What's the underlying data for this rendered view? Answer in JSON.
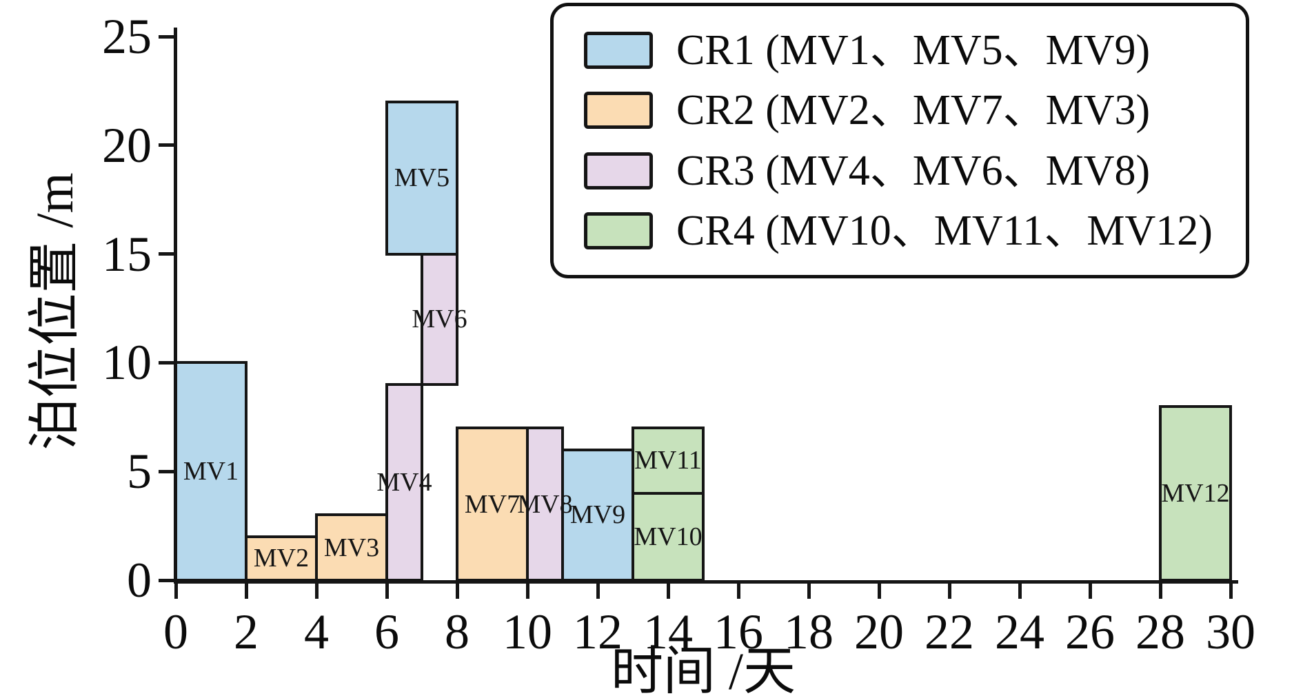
{
  "chart_data": {
    "type": "bar",
    "variant": "gantt-rectangles (berth allocation: time span vs berth position span)",
    "title": "",
    "xlabel": "时间 /天",
    "ylabel": "泊位位置 /m",
    "xlim": [
      0,
      30
    ],
    "ylim": [
      0,
      25
    ],
    "xticks": [
      0,
      2,
      4,
      6,
      8,
      10,
      12,
      14,
      16,
      18,
      20,
      22,
      24,
      26,
      28,
      30
    ],
    "yticks": [
      0,
      5,
      10,
      15,
      20,
      25
    ],
    "grid": false,
    "legend_position": "top-right",
    "edge_color": "#151515",
    "series": [
      {
        "name": "CR1",
        "label": "CR1 (MV1、MV5、MV9)",
        "color": "#b6d8ec",
        "rects": [
          {
            "label": "MV1",
            "x0": 0,
            "x1": 2,
            "y0": 0,
            "y1": 10
          },
          {
            "label": "MV5",
            "x0": 6,
            "x1": 8,
            "y0": 15,
            "y1": 22
          },
          {
            "label": "MV9",
            "x0": 11,
            "x1": 13,
            "y0": 0,
            "y1": 6
          }
        ]
      },
      {
        "name": "CR2",
        "label": "CR2 (MV2、MV7、MV3)",
        "color": "#fbdcb3",
        "rects": [
          {
            "label": "MV2",
            "x0": 2,
            "x1": 4,
            "y0": 0,
            "y1": 2
          },
          {
            "label": "MV7",
            "x0": 8,
            "x1": 10,
            "y0": 0,
            "y1": 7
          },
          {
            "label": "MV3",
            "x0": 4,
            "x1": 6,
            "y0": 0,
            "y1": 3
          }
        ]
      },
      {
        "name": "CR3",
        "label": "CR3 (MV4、MV6、MV8)",
        "color": "#e6d7e9",
        "rects": [
          {
            "label": "MV4",
            "x0": 6,
            "x1": 7,
            "y0": 0,
            "y1": 9
          },
          {
            "label": "MV6",
            "x0": 7,
            "x1": 8,
            "y0": 9,
            "y1": 15
          },
          {
            "label": "MV8",
            "x0": 10,
            "x1": 11,
            "y0": 0,
            "y1": 7
          }
        ]
      },
      {
        "name": "CR4",
        "label": "CR4 (MV10、MV11、MV12)",
        "color": "#c7e2bc",
        "rects": [
          {
            "label": "MV10",
            "x0": 13,
            "x1": 15,
            "y0": 0,
            "y1": 4
          },
          {
            "label": "MV11",
            "x0": 13,
            "x1": 15,
            "y0": 4,
            "y1": 7
          },
          {
            "label": "MV12",
            "x0": 28,
            "x1": 30,
            "y0": 0,
            "y1": 8
          }
        ]
      }
    ]
  }
}
